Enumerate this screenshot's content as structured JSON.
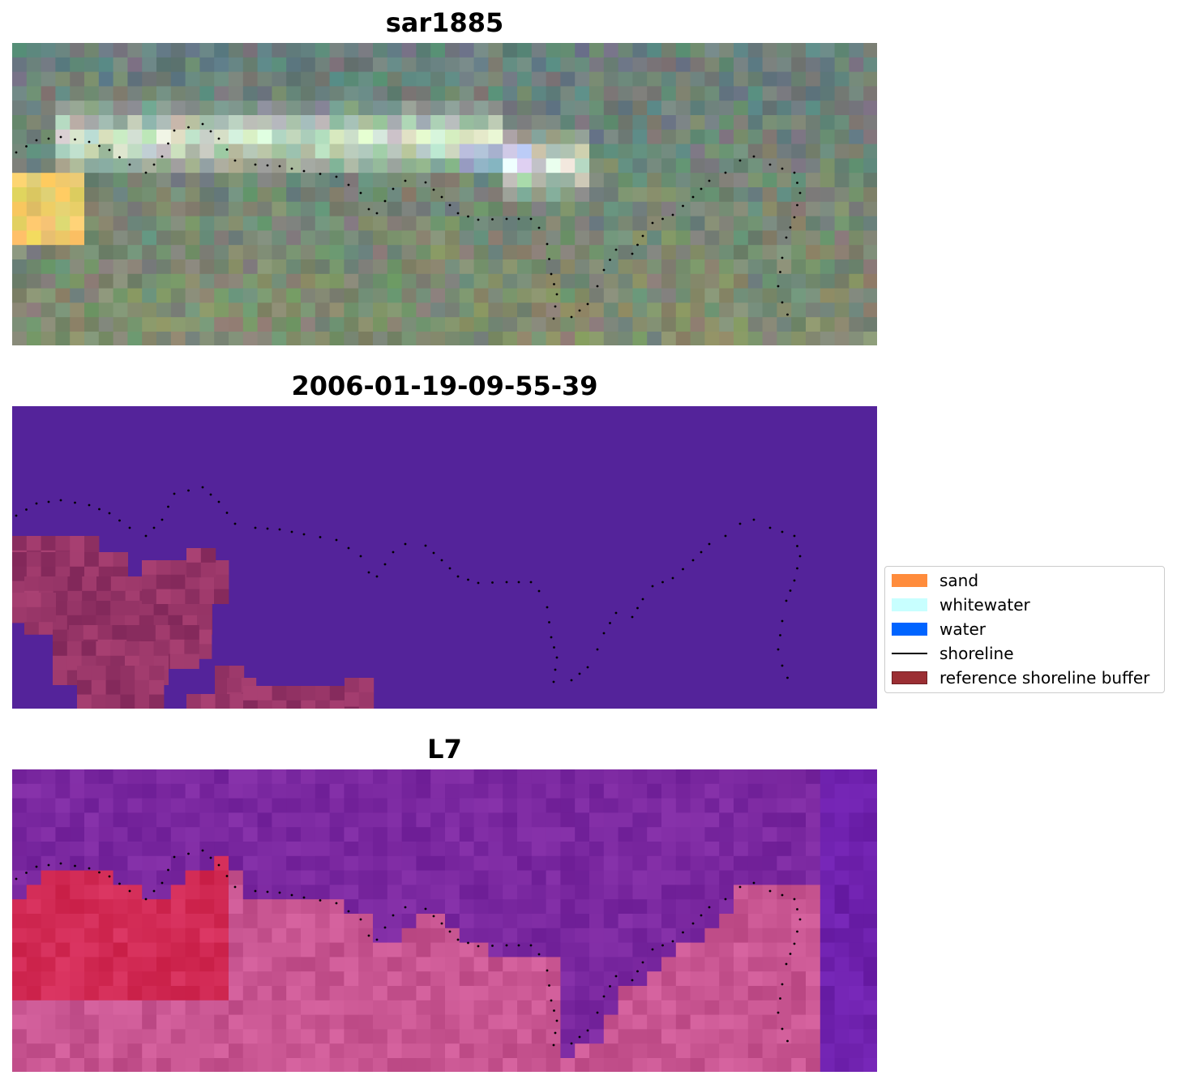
{
  "figure": {
    "panels": [
      {
        "title": "sar1885",
        "kind": "rgb"
      },
      {
        "title": "2006-01-19-09-55-39",
        "kind": "classified"
      },
      {
        "title": "L7",
        "kind": "index"
      }
    ]
  },
  "legend": {
    "items": [
      {
        "label": "sand",
        "color": "#ff8c3c",
        "type": "patch"
      },
      {
        "label": "whitewater",
        "color": "#c8ffff",
        "type": "patch"
      },
      {
        "label": "water",
        "color": "#0064ff",
        "type": "patch"
      },
      {
        "label": "shoreline",
        "color": "#000000",
        "type": "line"
      },
      {
        "label": "reference shoreline buffer",
        "color": "#9b2e33",
        "type": "patch"
      }
    ]
  },
  "colors": {
    "classified_background": "#54239a",
    "buffer_overlay": "#8e3a6b",
    "shoreline_dot": "#000000"
  }
}
